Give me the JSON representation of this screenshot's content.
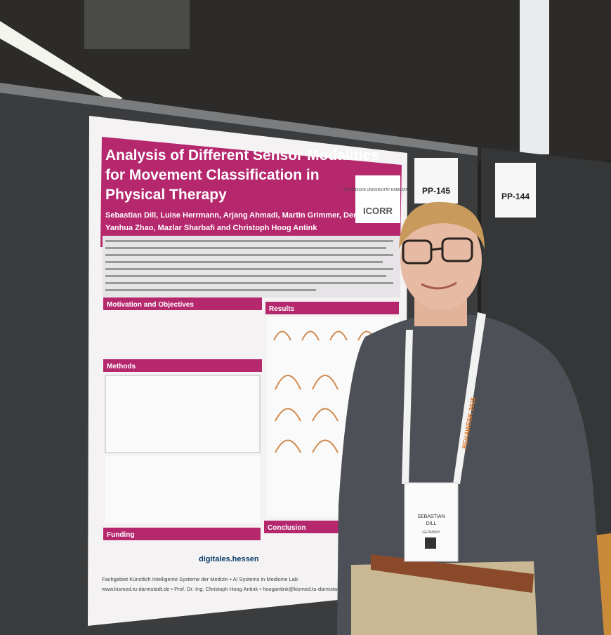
{
  "poster": {
    "title_lines": [
      "Analysis of Different Sensor Modalities",
      "for Movement Classification in",
      "Physical Therapy"
    ],
    "author_lines": [
      "Sebastian Dill, Luise Herrmann, Arjang Ahmadi, Martin Grimmer, Dennis Haufe,",
      "Yanhua Zhao, Mazlar Sharbafi and Christoph Hoog Antink"
    ],
    "logos": [
      "TECHNISCHE UNIVERSITÄT DARMSTADT",
      "ICORR"
    ],
    "sections": [
      "Motivation and Objectives",
      "Methods",
      "Results",
      "Funding",
      "Conclusion"
    ],
    "funding_logo": "digitales.hessen",
    "footer_lines": [
      "Fachgebiet Künstlich Intelligente Systeme der Medizin • AI Systems in Medicine Lab",
      "www.kismed.tu-darmstadt.de • Prof. Dr.-Ing. Christoph Hoog Antink • hoogantink@kismed.tu-darmstadt.de"
    ]
  },
  "boards": [
    "PP-145",
    "PP-144"
  ],
  "badge": {
    "name_lines": [
      "SEBASTIAN",
      "DILL"
    ],
    "country": "GERMANY"
  },
  "lanyard": "REHAWEEK 2025"
}
